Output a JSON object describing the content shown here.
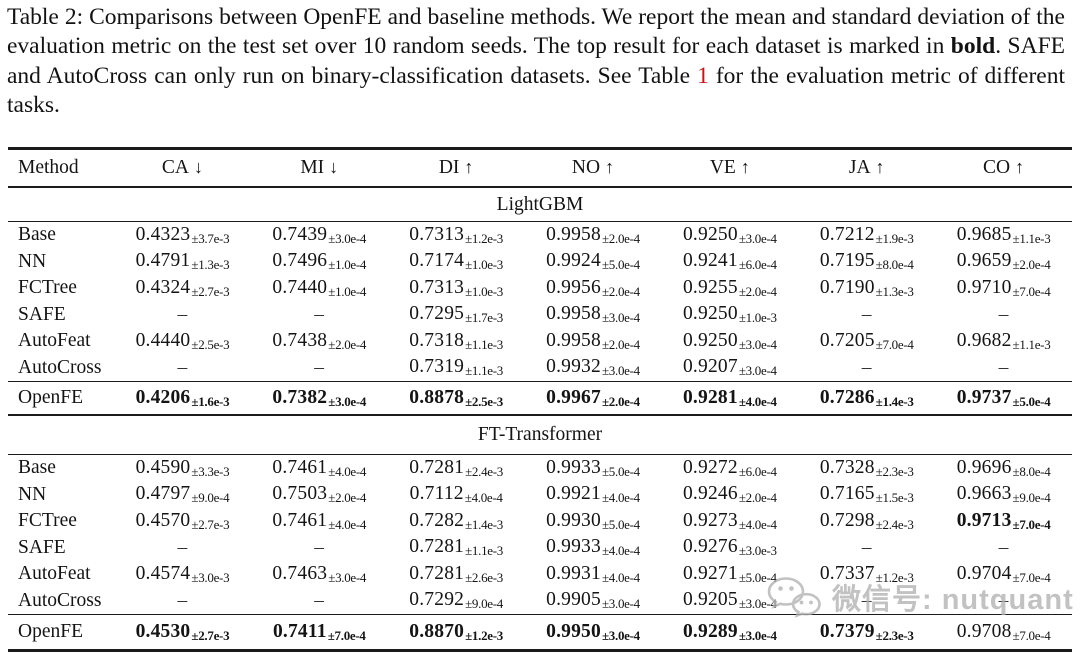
{
  "caption": {
    "part1": "Table 2: Comparisons between OpenFE and baseline methods. We report the mean and standard deviation of the evaluation metric on the test set over 10 random seeds. The top result for each dataset is marked in ",
    "bold_word": "bold",
    "part2": ". SAFE and AutoCross can only run on binary-classification datasets. See Table ",
    "table_ref": "1",
    "part3": " for the evaluation metric of different tasks."
  },
  "colors": {
    "text": "#141414",
    "rule": "#1b1b1b",
    "ref_red": "#cc1414",
    "watermark_gray": "#b2b2b2"
  },
  "watermark": {
    "icon": "wechat-icon",
    "text": "微信号: nutquant"
  },
  "table": {
    "columns": [
      {
        "label": "Method",
        "arrow": ""
      },
      {
        "label": "CA",
        "arrow": "↓"
      },
      {
        "label": "MI",
        "arrow": "↓"
      },
      {
        "label": "DI",
        "arrow": "↑"
      },
      {
        "label": "NO",
        "arrow": "↑"
      },
      {
        "label": "VE",
        "arrow": "↑"
      },
      {
        "label": "JA",
        "arrow": "↑"
      },
      {
        "label": "CO",
        "arrow": "↑"
      }
    ],
    "sections": [
      {
        "title": "LightGBM",
        "rows": [
          {
            "method": "Base",
            "cells": [
              {
                "v": "0.4323",
                "s": "±3.7e-3",
                "b": false
              },
              {
                "v": "0.7439",
                "s": "±3.0e-4",
                "b": false
              },
              {
                "v": "0.7313",
                "s": "±1.2e-3",
                "b": false
              },
              {
                "v": "0.9958",
                "s": "±2.0e-4",
                "b": false
              },
              {
                "v": "0.9250",
                "s": "±3.0e-4",
                "b": false
              },
              {
                "v": "0.7212",
                "s": "±1.9e-3",
                "b": false
              },
              {
                "v": "0.9685",
                "s": "±1.1e-3",
                "b": false
              }
            ]
          },
          {
            "method": "NN",
            "cells": [
              {
                "v": "0.4791",
                "s": "±1.3e-3",
                "b": false
              },
              {
                "v": "0.7496",
                "s": "±1.0e-4",
                "b": false
              },
              {
                "v": "0.7174",
                "s": "±1.0e-3",
                "b": false
              },
              {
                "v": "0.9924",
                "s": "±5.0e-4",
                "b": false
              },
              {
                "v": "0.9241",
                "s": "±6.0e-4",
                "b": false
              },
              {
                "v": "0.7195",
                "s": "±8.0e-4",
                "b": false
              },
              {
                "v": "0.9659",
                "s": "±2.0e-4",
                "b": false
              }
            ]
          },
          {
            "method": "FCTree",
            "cells": [
              {
                "v": "0.4324",
                "s": "±2.7e-3",
                "b": false
              },
              {
                "v": "0.7440",
                "s": "±1.0e-4",
                "b": false
              },
              {
                "v": "0.7313",
                "s": "±1.0e-3",
                "b": false
              },
              {
                "v": "0.9956",
                "s": "±2.0e-4",
                "b": false
              },
              {
                "v": "0.9255",
                "s": "±2.0e-4",
                "b": false
              },
              {
                "v": "0.7190",
                "s": "±1.3e-3",
                "b": false
              },
              {
                "v": "0.9710",
                "s": "±7.0e-4",
                "b": false
              }
            ]
          },
          {
            "method": "SAFE",
            "cells": [
              {
                "v": "–",
                "s": "",
                "b": false
              },
              {
                "v": "–",
                "s": "",
                "b": false
              },
              {
                "v": "0.7295",
                "s": "±1.7e-3",
                "b": false
              },
              {
                "v": "0.9958",
                "s": "±3.0e-4",
                "b": false
              },
              {
                "v": "0.9250",
                "s": "±1.0e-3",
                "b": false
              },
              {
                "v": "–",
                "s": "",
                "b": false
              },
              {
                "v": "–",
                "s": "",
                "b": false
              }
            ]
          },
          {
            "method": "AutoFeat",
            "cells": [
              {
                "v": "0.4440",
                "s": "±2.5e-3",
                "b": false
              },
              {
                "v": "0.7438",
                "s": "±2.0e-4",
                "b": false
              },
              {
                "v": "0.7318",
                "s": "±1.1e-3",
                "b": false
              },
              {
                "v": "0.9958",
                "s": "±2.0e-4",
                "b": false
              },
              {
                "v": "0.9250",
                "s": "±3.0e-4",
                "b": false
              },
              {
                "v": "0.7205",
                "s": "±7.0e-4",
                "b": false
              },
              {
                "v": "0.9682",
                "s": "±1.1e-3",
                "b": false
              }
            ]
          },
          {
            "method": "AutoCross",
            "cells": [
              {
                "v": "–",
                "s": "",
                "b": false
              },
              {
                "v": "–",
                "s": "",
                "b": false
              },
              {
                "v": "0.7319",
                "s": "±1.1e-3",
                "b": false
              },
              {
                "v": "0.9932",
                "s": "±3.0e-4",
                "b": false
              },
              {
                "v": "0.9207",
                "s": "±3.0e-4",
                "b": false
              },
              {
                "v": "–",
                "s": "",
                "b": false
              },
              {
                "v": "–",
                "s": "",
                "b": false
              }
            ]
          }
        ],
        "openfe": {
          "method": "OpenFE",
          "cells": [
            {
              "v": "0.4206",
              "s": "±1.6e-3",
              "b": true
            },
            {
              "v": "0.7382",
              "s": "±3.0e-4",
              "b": true
            },
            {
              "v": "0.8878",
              "s": "±2.5e-3",
              "b": true
            },
            {
              "v": "0.9967",
              "s": "±2.0e-4",
              "b": true
            },
            {
              "v": "0.9281",
              "s": "±4.0e-4",
              "b": true
            },
            {
              "v": "0.7286",
              "s": "±1.4e-3",
              "b": true
            },
            {
              "v": "0.9737",
              "s": "±5.0e-4",
              "b": true
            }
          ]
        }
      },
      {
        "title": "FT-Transformer",
        "rows": [
          {
            "method": "Base",
            "cells": [
              {
                "v": "0.4590",
                "s": "±3.3e-3",
                "b": false
              },
              {
                "v": "0.7461",
                "s": "±4.0e-4",
                "b": false
              },
              {
                "v": "0.7281",
                "s": "±2.4e-3",
                "b": false
              },
              {
                "v": "0.9933",
                "s": "±5.0e-4",
                "b": false
              },
              {
                "v": "0.9272",
                "s": "±6.0e-4",
                "b": false
              },
              {
                "v": "0.7328",
                "s": "±2.3e-3",
                "b": false
              },
              {
                "v": "0.9696",
                "s": "±8.0e-4",
                "b": false
              }
            ]
          },
          {
            "method": "NN",
            "cells": [
              {
                "v": "0.4797",
                "s": "±9.0e-4",
                "b": false
              },
              {
                "v": "0.7503",
                "s": "±2.0e-4",
                "b": false
              },
              {
                "v": "0.7112",
                "s": "±4.0e-4",
                "b": false
              },
              {
                "v": "0.9921",
                "s": "±4.0e-4",
                "b": false
              },
              {
                "v": "0.9246",
                "s": "±2.0e-4",
                "b": false
              },
              {
                "v": "0.7165",
                "s": "±1.5e-3",
                "b": false
              },
              {
                "v": "0.9663",
                "s": "±9.0e-4",
                "b": false
              }
            ]
          },
          {
            "method": "FCTree",
            "cells": [
              {
                "v": "0.4570",
                "s": "±2.7e-3",
                "b": false
              },
              {
                "v": "0.7461",
                "s": "±4.0e-4",
                "b": false
              },
              {
                "v": "0.7282",
                "s": "±1.4e-3",
                "b": false
              },
              {
                "v": "0.9930",
                "s": "±5.0e-4",
                "b": false
              },
              {
                "v": "0.9273",
                "s": "±4.0e-4",
                "b": false
              },
              {
                "v": "0.7298",
                "s": "±2.4e-3",
                "b": false
              },
              {
                "v": "0.9713",
                "s": "±7.0e-4",
                "b": true
              }
            ]
          },
          {
            "method": "SAFE",
            "cells": [
              {
                "v": "–",
                "s": "",
                "b": false
              },
              {
                "v": "–",
                "s": "",
                "b": false
              },
              {
                "v": "0.7281",
                "s": "±1.1e-3",
                "b": false
              },
              {
                "v": "0.9933",
                "s": "±4.0e-4",
                "b": false
              },
              {
                "v": "0.9276",
                "s": "±3.0e-3",
                "b": false
              },
              {
                "v": "–",
                "s": "",
                "b": false
              },
              {
                "v": "–",
                "s": "",
                "b": false
              }
            ]
          },
          {
            "method": "AutoFeat",
            "cells": [
              {
                "v": "0.4574",
                "s": "±3.0e-3",
                "b": false
              },
              {
                "v": "0.7463",
                "s": "±3.0e-4",
                "b": false
              },
              {
                "v": "0.7281",
                "s": "±2.6e-3",
                "b": false
              },
              {
                "v": "0.9931",
                "s": "±4.0e-4",
                "b": false
              },
              {
                "v": "0.9271",
                "s": "±5.0e-4",
                "b": false
              },
              {
                "v": "0.7337",
                "s": "±1.2e-3",
                "b": false
              },
              {
                "v": "0.9704",
                "s": "±7.0e-4",
                "b": false
              }
            ]
          },
          {
            "method": "AutoCross",
            "cells": [
              {
                "v": "–",
                "s": "",
                "b": false
              },
              {
                "v": "–",
                "s": "",
                "b": false
              },
              {
                "v": "0.7292",
                "s": "±9.0e-4",
                "b": false
              },
              {
                "v": "0.9905",
                "s": "±3.0e-4",
                "b": false
              },
              {
                "v": "0.9205",
                "s": "±3.0e-4",
                "b": false
              },
              {
                "v": "–",
                "s": "",
                "b": false
              },
              {
                "v": "–",
                "s": "",
                "b": false
              }
            ]
          }
        ],
        "openfe": {
          "method": "OpenFE",
          "cells": [
            {
              "v": "0.4530",
              "s": "±2.7e-3",
              "b": true
            },
            {
              "v": "0.7411",
              "s": "±7.0e-4",
              "b": true
            },
            {
              "v": "0.8870",
              "s": "±1.2e-3",
              "b": true
            },
            {
              "v": "0.9950",
              "s": "±3.0e-4",
              "b": true
            },
            {
              "v": "0.9289",
              "s": "±3.0e-4",
              "b": true
            },
            {
              "v": "0.7379",
              "s": "±2.3e-3",
              "b": true
            },
            {
              "v": "0.9708",
              "s": "±7.0e-4",
              "b": false
            }
          ]
        }
      }
    ]
  }
}
